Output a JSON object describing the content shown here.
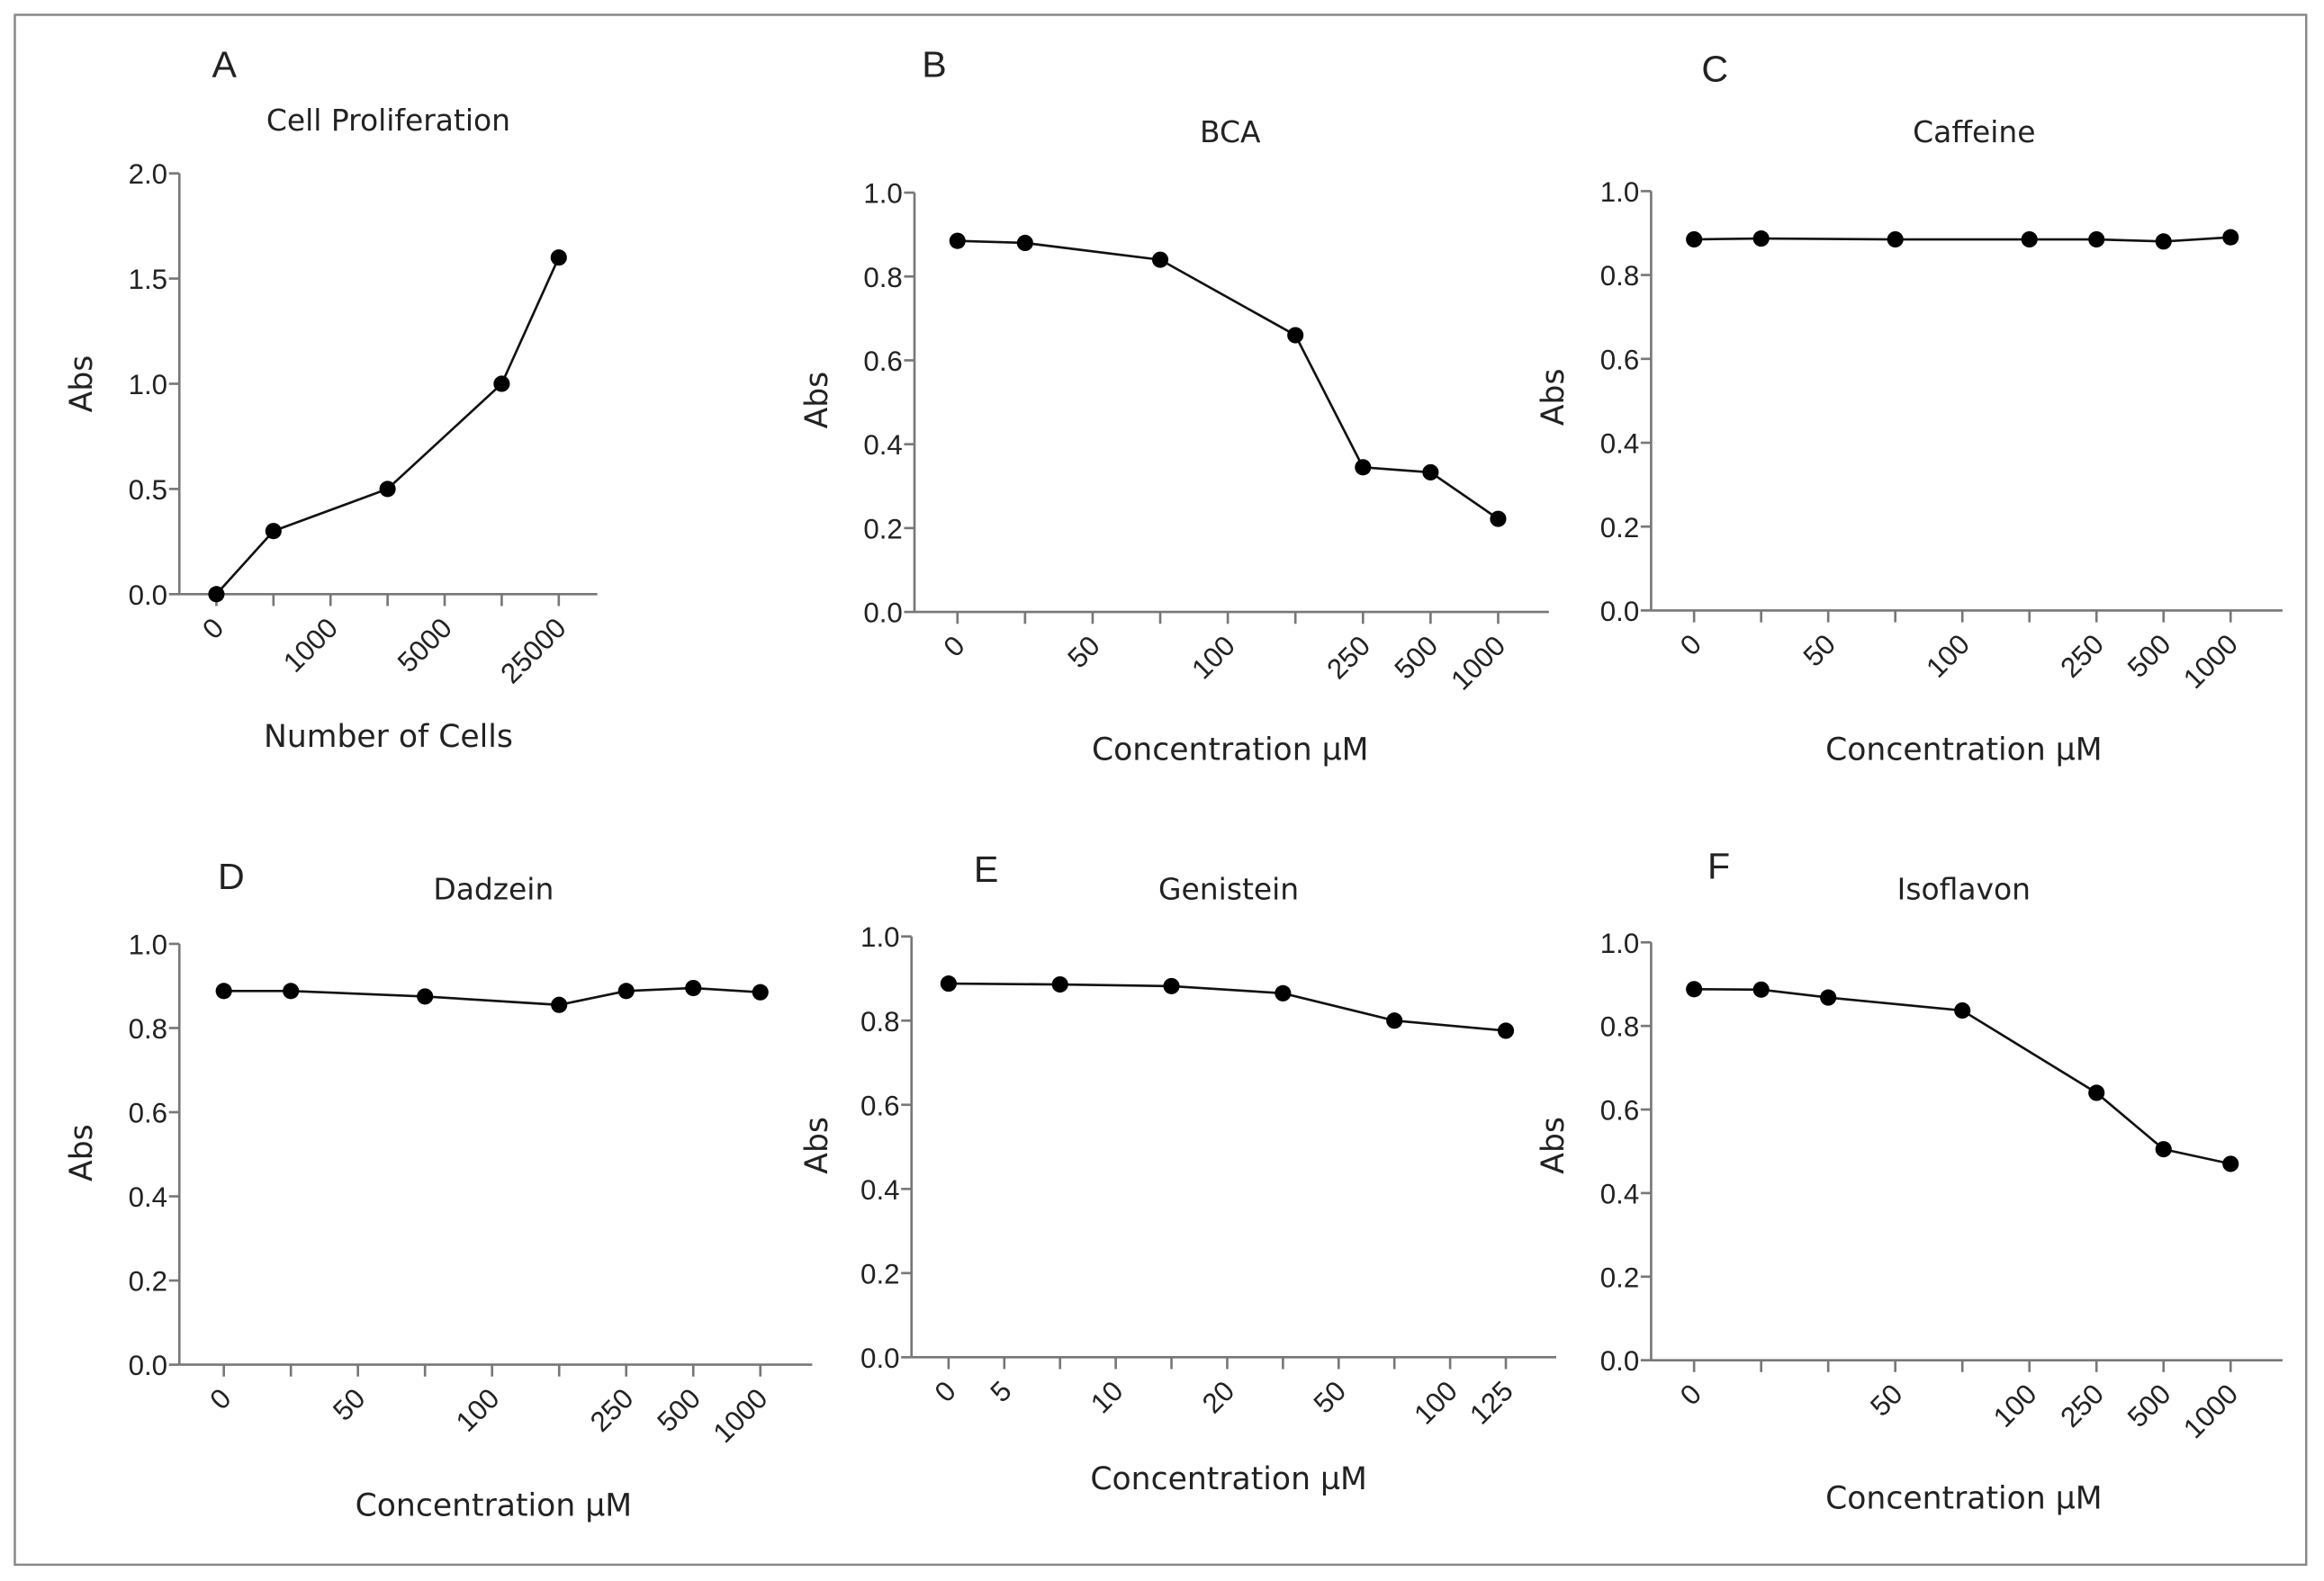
{
  "colors": {
    "line": "#111111",
    "marker": "#000000",
    "axis": "#777777",
    "frame": "#888888"
  },
  "chart_data": [
    {
      "panel": "A",
      "type": "line",
      "title": "Cell Proliferation",
      "xlabel": "Number of Cells",
      "ylabel": "Abs",
      "ylim": [
        0,
        2.0
      ],
      "yticks": [
        "0.0",
        "0.5",
        "1.0",
        "1.5",
        "2.0"
      ],
      "x_tick_labels": [
        "0",
        "",
        "1000",
        "",
        "5000",
        "",
        "25000"
      ],
      "point_positions": [
        0,
        1,
        3,
        5,
        6
      ],
      "values": [
        0.0,
        0.3,
        0.5,
        1.0,
        1.6
      ]
    },
    {
      "panel": "B",
      "type": "line",
      "title": "BCA",
      "xlabel": "Concentration µM",
      "ylabel": "Abs",
      "ylim": [
        0,
        1.0
      ],
      "yticks": [
        "0.0",
        "0.2",
        "0.4",
        "0.6",
        "0.8",
        "1.0"
      ],
      "x_tick_labels": [
        "0",
        "",
        "50",
        "",
        "100",
        "",
        "250",
        "500",
        "1000"
      ],
      "point_positions": [
        0,
        1,
        3,
        5,
        6,
        7,
        8
      ],
      "values": [
        0.885,
        0.88,
        0.84,
        0.66,
        0.345,
        0.333,
        0.222
      ]
    },
    {
      "panel": "C",
      "type": "line",
      "title": "Caffeine",
      "xlabel": "Concentration µM",
      "ylabel": "Abs",
      "ylim": [
        0,
        1.0
      ],
      "yticks": [
        "0.0",
        "0.2",
        "0.4",
        "0.6",
        "0.8",
        "1.0"
      ],
      "x_tick_labels": [
        "0",
        "",
        "50",
        "",
        "100",
        "",
        "250",
        "500",
        "1000"
      ],
      "point_positions": [
        0,
        1,
        3,
        5,
        6,
        7,
        8
      ],
      "values": [
        0.885,
        0.887,
        0.885,
        0.885,
        0.885,
        0.88,
        0.89
      ]
    },
    {
      "panel": "D",
      "type": "line",
      "title": "Dadzein",
      "xlabel": "Concentration µM",
      "ylabel": "Abs",
      "ylim": [
        0,
        1.0
      ],
      "yticks": [
        "0.0",
        "0.2",
        "0.4",
        "0.6",
        "0.8",
        "1.0"
      ],
      "x_tick_labels": [
        "0",
        "",
        "50",
        "",
        "100",
        "",
        "250",
        "500",
        "1000"
      ],
      "point_positions": [
        0,
        1,
        3,
        5,
        6,
        7,
        8
      ],
      "values": [
        0.888,
        0.888,
        0.875,
        0.855,
        0.888,
        0.895,
        0.885
      ]
    },
    {
      "panel": "E",
      "type": "line",
      "title": "Genistein",
      "xlabel": "Concentration µM",
      "ylabel": "Abs",
      "ylim": [
        0,
        1.0
      ],
      "yticks": [
        "0.0",
        "0.2",
        "0.4",
        "0.6",
        "0.8",
        "1.0"
      ],
      "x_tick_labels": [
        "0",
        "5",
        "",
        "10",
        "",
        "20",
        "",
        "50",
        "",
        "100",
        "125"
      ],
      "point_positions": [
        0,
        2,
        4,
        6,
        8,
        10
      ],
      "values": [
        0.888,
        0.886,
        0.882,
        0.865,
        0.8,
        0.776
      ]
    },
    {
      "panel": "F",
      "type": "line",
      "title": "Isoflavon",
      "xlabel": "Concentration µM",
      "ylabel": "Abs",
      "ylim": [
        0,
        1.0
      ],
      "yticks": [
        "0.0",
        "0.2",
        "0.4",
        "0.6",
        "0.8",
        "1.0"
      ],
      "x_tick_labels": [
        "0",
        "",
        "",
        "50",
        "",
        "100",
        "250",
        "500",
        "1000"
      ],
      "point_positions": [
        0,
        1,
        2,
        4,
        6,
        7,
        8
      ],
      "values": [
        0.888,
        0.887,
        0.868,
        0.837,
        0.64,
        0.505,
        0.47
      ]
    }
  ]
}
